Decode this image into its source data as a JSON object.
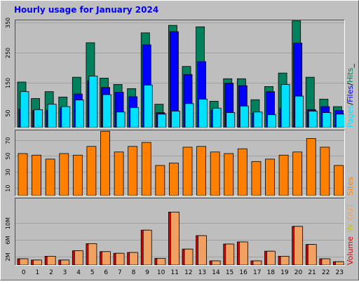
{
  "title": "Hourly usage for January 2024",
  "colors": {
    "background": "#C0C0C0",
    "plot_background": "#BEBEBE",
    "grid": "#A0A0A0",
    "title": "#0000FF",
    "hits": "#00805C",
    "files": "#0000FF",
    "pages": "#00E0FF",
    "sites": "#FF8000",
    "volume": "#E00000",
    "in": "#C8C800",
    "out": "#F0A060"
  },
  "chart_data": [
    {
      "type": "bar",
      "panel": "top",
      "categories": [
        "0",
        "1",
        "2",
        "3",
        "4",
        "5",
        "6",
        "7",
        "8",
        "9",
        "10",
        "11",
        "12",
        "13",
        "14",
        "15",
        "16",
        "17",
        "18",
        "19",
        "20",
        "21",
        "22",
        "23"
      ],
      "yticks": [
        50,
        150,
        250,
        350
      ],
      "ylim": [
        0,
        360
      ],
      "axis_label_parts": [
        "Pages",
        "/",
        "Files",
        "/",
        "Hits",
        "_"
      ],
      "series": [
        {
          "name": "Hits",
          "values": [
            152,
            97,
            120,
            102,
            168,
            283,
            165,
            144,
            130,
            316,
            78,
            341,
            204,
            336,
            88,
            163,
            163,
            93,
            137,
            182,
            356,
            168,
            95,
            70
          ]
        },
        {
          "name": "Files",
          "values": [
            62,
            57,
            58,
            66,
            112,
            156,
            134,
            118,
            103,
            276,
            50,
            320,
            177,
            220,
            58,
            148,
            140,
            48,
            120,
            65,
            282,
            60,
            70,
            57
          ]
        },
        {
          "name": "Pages",
          "values": [
            120,
            60,
            78,
            70,
            92,
            172,
            110,
            52,
            67,
            142,
            45,
            55,
            80,
            95,
            65,
            50,
            72,
            52,
            43,
            144,
            105,
            55,
            50,
            45
          ]
        }
      ]
    },
    {
      "type": "bar",
      "panel": "middle",
      "categories": [
        "0",
        "1",
        "2",
        "3",
        "4",
        "5",
        "6",
        "7",
        "8",
        "9",
        "10",
        "11",
        "12",
        "13",
        "14",
        "15",
        "16",
        "17",
        "18",
        "19",
        "20",
        "21",
        "22",
        "23"
      ],
      "yticks": [
        10,
        30,
        50,
        70
      ],
      "ylim": [
        0,
        83
      ],
      "axis_label_parts": [
        "Sites"
      ],
      "series": [
        {
          "name": "Sites",
          "values": [
            53,
            51,
            46,
            53,
            51,
            62,
            81,
            55,
            62,
            67,
            38,
            41,
            61,
            62,
            55,
            53,
            59,
            43,
            46,
            51,
            55,
            72,
            61,
            38
          ]
        }
      ]
    },
    {
      "type": "bar",
      "panel": "bottom",
      "categories": [
        "0",
        "1",
        "2",
        "3",
        "4",
        "5",
        "6",
        "7",
        "8",
        "9",
        "10",
        "11",
        "12",
        "13",
        "14",
        "15",
        "16",
        "17",
        "18",
        "19",
        "20",
        "21",
        "22",
        "23"
      ],
      "yticks": [
        2,
        6,
        10
      ],
      "tick_suffix": "M",
      "ylim": [
        0,
        16
      ],
      "axis_label_parts": [
        "Volume",
        "IN",
        "OUT"
      ],
      "series": [
        {
          "name": "Volume",
          "values": [
            1.5,
            1.2,
            2.1,
            1.2,
            3.4,
            5.1,
            3.2,
            2.8,
            3.0,
            8.3,
            1.6,
            12.6,
            3.8,
            7.0,
            1.0,
            5.0,
            5.5,
            1.0,
            3.3,
            2.1,
            9.2,
            4.9,
            1.5,
            0.8
          ]
        },
        {
          "name": "OUT",
          "values": [
            1.5,
            1.2,
            2.1,
            1.2,
            3.4,
            5.1,
            3.2,
            2.8,
            3.0,
            8.3,
            1.6,
            12.6,
            3.8,
            7.0,
            1.0,
            5.0,
            5.5,
            1.0,
            3.3,
            2.1,
            9.2,
            4.9,
            1.5,
            0.8
          ]
        }
      ]
    }
  ]
}
